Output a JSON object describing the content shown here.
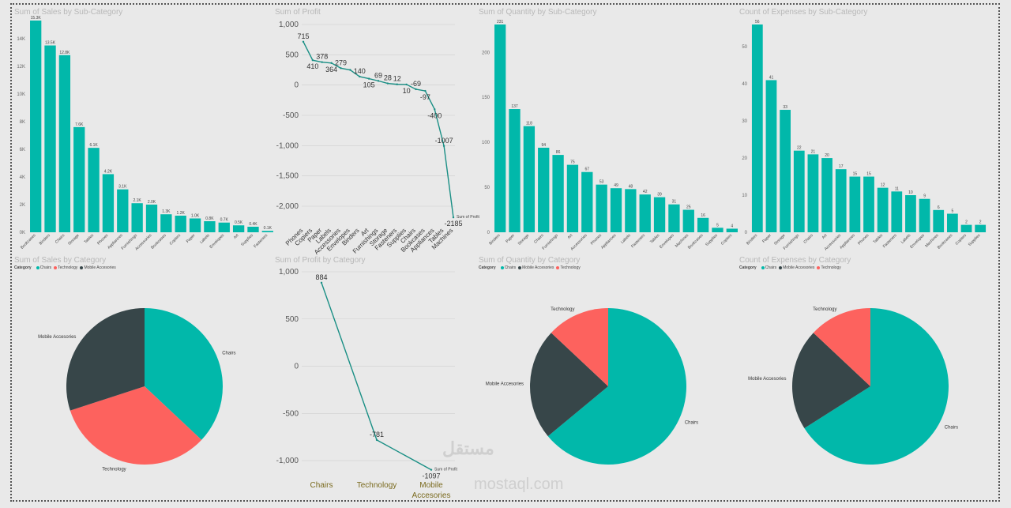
{
  "colors": {
    "teal": "#01B8AA",
    "dark": "#374649",
    "red": "#FD625E",
    "line": "#1a8f85"
  },
  "legends": {
    "p5": {
      "title": "Category",
      "items": [
        {
          "label": "Chairs",
          "color": "#01B8AA"
        },
        {
          "label": "Technology",
          "color": "#FD625E"
        },
        {
          "label": "Mobile Accesories",
          "color": "#374649"
        }
      ]
    },
    "p7": {
      "title": "Category",
      "items": [
        {
          "label": "Chairs",
          "color": "#01B8AA"
        },
        {
          "label": "Mobile Accesories",
          "color": "#374649"
        },
        {
          "label": "Technology",
          "color": "#FD625E"
        }
      ]
    },
    "p8": {
      "title": "Category",
      "items": [
        {
          "label": "Chairs",
          "color": "#01B8AA"
        },
        {
          "label": "Mobile Accesories",
          "color": "#374649"
        },
        {
          "label": "Technology",
          "color": "#FD625E"
        }
      ]
    }
  },
  "watermark": {
    "arabic": "مستقل",
    "latin": "mostaql.com"
  },
  "chart_data": [
    {
      "type": "bar",
      "title": "Sum of Sales by Sub-Category",
      "categories": [
        "Bookcases",
        "Binders",
        "Chairs",
        "Storage",
        "Tables",
        "Phones",
        "Appliances",
        "Furnishings",
        "Accessories",
        "Bookcases",
        "Copiers",
        "Paper",
        "Labels",
        "Envelopes",
        "Art",
        "Supplies",
        "Fasteners"
      ],
      "values": [
        15.3,
        13.5,
        12.8,
        7.6,
        6.1,
        4.2,
        3.1,
        2.1,
        2.0,
        1.3,
        1.2,
        1.0,
        0.8,
        0.7,
        0.5,
        0.4,
        0.1
      ],
      "data_labels": [
        "15.3K",
        "13.5K",
        "12.8K",
        "7.6K",
        "6.1K",
        "4.2K",
        "3.1K",
        "2.1K",
        "2.0K",
        "1.3K",
        "1.2K",
        "1.0K",
        "0.8K",
        "0.7K",
        "0.5K",
        "0.4K",
        "0.1K"
      ],
      "yticks": [
        "0K",
        "2K",
        "4K",
        "6K",
        "8K",
        "10K",
        "12K",
        "14K"
      ],
      "ylim": [
        0,
        15.3
      ]
    },
    {
      "type": "line",
      "title": "Sum of Profit",
      "categories": [
        "Phones",
        "Copiers",
        "Paper",
        "Labels",
        "Accessories",
        "Envelopes",
        "Binders",
        "Art",
        "Furnishings",
        "Storage",
        "Fasteners",
        "Supplies",
        "Chairs",
        "Bookcases",
        "Appliances",
        "Tables",
        "Machines"
      ],
      "values": [
        715,
        410,
        378,
        364,
        279,
        250,
        140,
        105,
        69,
        28,
        12,
        10,
        -69,
        -97,
        -400,
        -1007,
        -2185
      ],
      "data_labels": [
        "715",
        "410",
        "378",
        "364",
        "279",
        "",
        "140",
        "105",
        "69",
        "28",
        "12",
        "10",
        "-69",
        "-97",
        "-400",
        "-1007",
        "-2185"
      ],
      "yticks": [
        "1,000",
        "500",
        "0",
        "-500",
        "-1,000",
        "-1,500",
        "-2,000"
      ],
      "ylim": [
        -2300,
        1000
      ],
      "series_label": "Sum of Profit"
    },
    {
      "type": "bar",
      "title": "Sum of Quantity by Sub-Category",
      "categories": [
        "Binders",
        "Paper",
        "Storage",
        "Chairs",
        "Furnishings",
        "Art",
        "Accessories",
        "Phones",
        "Appliances",
        "Labels",
        "Fasteners",
        "Tables",
        "Envelopes",
        "Machines",
        "Bookcases",
        "Supplies",
        "Copiers"
      ],
      "values": [
        231,
        137,
        118,
        94,
        86,
        75,
        67,
        53,
        49,
        48,
        42,
        39,
        31,
        25,
        16,
        5,
        4
      ],
      "yticks": [
        "0",
        "50",
        "100",
        "150",
        "200"
      ],
      "ylim": [
        0,
        231
      ]
    },
    {
      "type": "bar",
      "title": "Count of Expenses by Sub-Category",
      "categories": [
        "Binders",
        "Paper",
        "Storage",
        "Furnishings",
        "Chairs",
        "Art",
        "Accessories",
        "Appliances",
        "Phones",
        "Tables",
        "Fasteners",
        "Labels",
        "Envelopes",
        "Machines",
        "Bookcases",
        "Copiers",
        "Supplies"
      ],
      "values": [
        56,
        41,
        33,
        22,
        21,
        20,
        17,
        15,
        15,
        12,
        11,
        10,
        9,
        6,
        5,
        2,
        2
      ],
      "yticks": [
        "0",
        "10",
        "20",
        "30",
        "40",
        "50"
      ],
      "ylim": [
        0,
        56
      ]
    },
    {
      "type": "pie",
      "title": "Sum of Sales by Category",
      "slices": [
        {
          "label": "Chairs",
          "value": 37,
          "color": "#01B8AA"
        },
        {
          "label": "Technology",
          "value": 33,
          "color": "#FD625E"
        },
        {
          "label": "Mobile Accesories",
          "value": 30,
          "color": "#374649"
        }
      ]
    },
    {
      "type": "line",
      "title": "Sum of Profit by Category",
      "categories": [
        "Chairs",
        "Technology",
        "Mobile Accesories"
      ],
      "values": [
        884,
        -781,
        -1097
      ],
      "data_labels": [
        "884",
        "-781",
        "-1097"
      ],
      "yticks": [
        "1,000",
        "500",
        "0",
        "-500",
        "-1,000"
      ],
      "ylim": [
        -1100,
        1000
      ],
      "series_label": "Sum of Profit"
    },
    {
      "type": "pie",
      "title": "Sum of Quantity by Category",
      "slices": [
        {
          "label": "Chairs",
          "value": 64,
          "color": "#01B8AA"
        },
        {
          "label": "Mobile Accesories",
          "value": 23,
          "color": "#374649"
        },
        {
          "label": "Technology",
          "value": 13,
          "color": "#FD625E"
        }
      ]
    },
    {
      "type": "pie",
      "title": "Count of Expenses by Category",
      "slices": [
        {
          "label": "Chairs",
          "value": 66,
          "color": "#01B8AA"
        },
        {
          "label": "Mobile Accesories",
          "value": 21,
          "color": "#374649"
        },
        {
          "label": "Technology",
          "value": 13,
          "color": "#FD625E"
        }
      ]
    }
  ]
}
